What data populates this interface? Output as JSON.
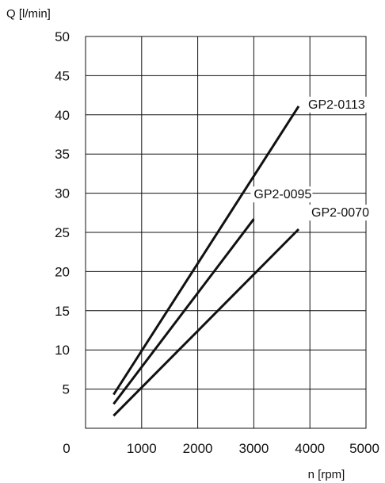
{
  "chart_data": {
    "type": "line",
    "ylabel": "Q [l/min]",
    "xlabel": "n [rpm]",
    "xlim": [
      0,
      5000
    ],
    "ylim": [
      0,
      50
    ],
    "x_ticks": [
      0,
      1000,
      2000,
      3000,
      4000,
      5000
    ],
    "y_ticks": [
      5,
      10,
      15,
      20,
      25,
      30,
      35,
      40,
      45,
      50
    ],
    "grid": true,
    "series": [
      {
        "name": "GP2-0113",
        "x": [
          500,
          3800
        ],
        "y": [
          4.3,
          41.1
        ]
      },
      {
        "name": "GP2-0095",
        "x": [
          500,
          3000
        ],
        "y": [
          3.1,
          26.7
        ]
      },
      {
        "name": "GP2-0070",
        "x": [
          500,
          3800
        ],
        "y": [
          1.6,
          25.4
        ]
      }
    ],
    "colors": {
      "line": "#111111",
      "grid": "#111111",
      "label_background": "#ffffff"
    }
  }
}
